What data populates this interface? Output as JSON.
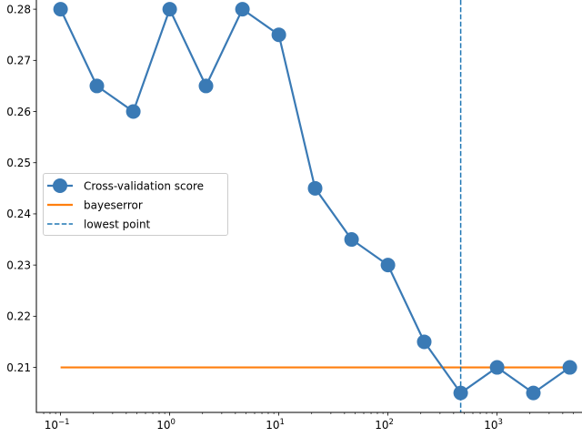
{
  "chart_data": {
    "type": "line",
    "xscale": "log",
    "xlim": [
      0.06,
      6000
    ],
    "ylim": [
      0.2012,
      0.2818
    ],
    "x_ticks": [
      0.1,
      1,
      10,
      100,
      1000
    ],
    "x_tick_labels": [
      {
        "base": "10",
        "exp": "−1"
      },
      {
        "base": "10",
        "exp": "0"
      },
      {
        "base": "10",
        "exp": "1"
      },
      {
        "base": "10",
        "exp": "2"
      },
      {
        "base": "10",
        "exp": "3"
      }
    ],
    "y_ticks": [
      0.21,
      0.22,
      0.23,
      0.24,
      0.25,
      0.26,
      0.27,
      0.28
    ],
    "y_tick_labels": [
      "0.21",
      "0.22",
      "0.23",
      "0.24",
      "0.25",
      "0.26",
      "0.27",
      "0.28"
    ],
    "grid": false,
    "legend_position": "center-left",
    "series": [
      {
        "name": "Cross-validation score",
        "style": "line-with-markers",
        "color": "#3a7ab5",
        "x": [
          0.1,
          0.215,
          0.464,
          1.0,
          2.15,
          4.64,
          10.0,
          21.5,
          46.4,
          100.0,
          215.0,
          464.0,
          1000.0,
          2150.0,
          4640.0
        ],
        "y": [
          0.28,
          0.265,
          0.26,
          0.28,
          0.265,
          0.28,
          0.275,
          0.245,
          0.235,
          0.23,
          0.215,
          0.205,
          0.21,
          0.205,
          0.21
        ]
      },
      {
        "name": "bayeserror",
        "style": "solid",
        "color": "#ff7f0e",
        "x": [
          0.1,
          4640.0
        ],
        "y": [
          0.21,
          0.21
        ]
      },
      {
        "name": "lowest point",
        "style": "vertical-dashed",
        "color": "#1f77b4",
        "x_value": 464.0
      }
    ]
  }
}
